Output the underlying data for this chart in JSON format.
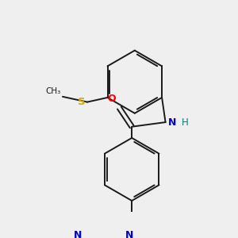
{
  "background_color": "#efefef",
  "bond_color": "#1a1a1a",
  "bond_width": 1.4,
  "atom_colors": {
    "O": "#ff0000",
    "N": "#0000cc",
    "S": "#ccaa00",
    "H": "#008080",
    "C": "#1a1a1a"
  },
  "fs": 8.5
}
